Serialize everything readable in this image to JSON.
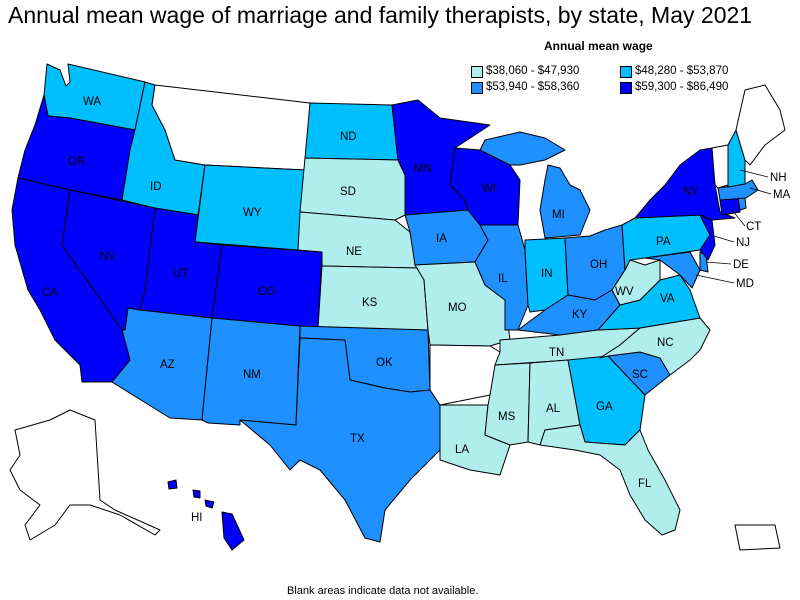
{
  "title": "Annual mean wage of marriage and family therapists, by state, May 2021",
  "legend": {
    "title": "Annual mean wage",
    "items": [
      {
        "label": "$38,060 - $47,930",
        "color": "#b0eeee"
      },
      {
        "label": "$48,280 - $53,870",
        "color": "#00bfff"
      },
      {
        "label": "$53,940 - $58,360",
        "color": "#1e90ff"
      },
      {
        "label": "$59,300 - $86,490",
        "color": "#0000ff"
      }
    ]
  },
  "footnote": "Blank areas indicate data not available.",
  "state_labels": {
    "WA": "WA",
    "OR": "OR",
    "CA": "CA",
    "NV": "NV",
    "ID": "ID",
    "UT": "UT",
    "AZ": "AZ",
    "WY": "WY",
    "CO": "CO",
    "NM": "NM",
    "ND": "ND",
    "SD": "SD",
    "NE": "NE",
    "KS": "KS",
    "OK": "OK",
    "TX": "TX",
    "MN": "MN",
    "IA": "IA",
    "MO": "MO",
    "WI": "WI",
    "IL": "IL",
    "MI": "MI",
    "IN": "IN",
    "OH": "OH",
    "KY": "KY",
    "TN": "TN",
    "MS": "MS",
    "AL": "AL",
    "LA": "LA",
    "GA": "GA",
    "FL": "FL",
    "SC": "SC",
    "NC": "NC",
    "VA": "VA",
    "WV": "WV",
    "PA": "PA",
    "NY": "NY",
    "NH": "NH",
    "MA": "MA",
    "CT": "CT",
    "NJ": "NJ",
    "DE": "DE",
    "MD": "MD",
    "HI": "HI"
  }
}
